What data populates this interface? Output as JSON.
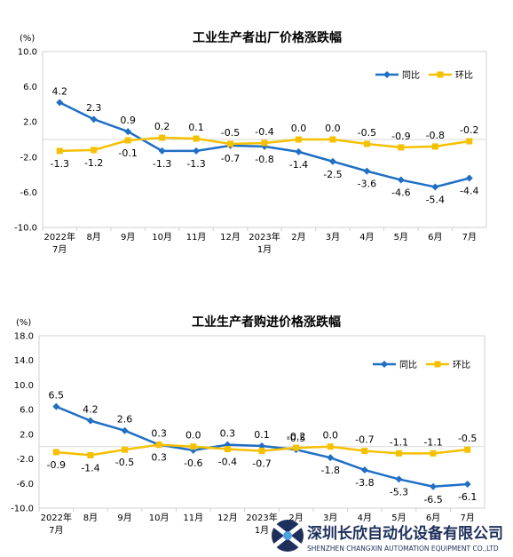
{
  "chart_data": [
    {
      "type": "line",
      "title": "工业生产者出厂价格涨跌幅",
      "unit": "(%)",
      "ylim": [
        -10.0,
        10.0
      ],
      "yticks": [
        "10.0",
        "6.0",
        "2.0",
        "-2.0",
        "-6.0",
        "-10.0"
      ],
      "ytick_values": [
        10,
        6,
        2,
        -2,
        -6,
        -10
      ],
      "categories": [
        [
          "2022年",
          "7月"
        ],
        [
          "8月"
        ],
        [
          "9月"
        ],
        [
          "10月"
        ],
        [
          "11月"
        ],
        [
          "12月"
        ],
        [
          "2023年",
          "1月"
        ],
        [
          "2月"
        ],
        [
          "3月"
        ],
        [
          "4月"
        ],
        [
          "5月"
        ],
        [
          "6月"
        ],
        [
          "7月"
        ]
      ],
      "legend_position": "top-right",
      "series": [
        {
          "name": "同比",
          "color": "#1f6fc5",
          "values": [
            4.2,
            2.3,
            0.9,
            -1.3,
            -1.3,
            -0.7,
            -0.8,
            -1.4,
            -2.5,
            -3.6,
            -4.6,
            -5.4,
            -4.4
          ],
          "labels": [
            "4.2",
            "2.3",
            "0.9",
            "-1.3",
            "-1.3",
            "-0.7",
            "-0.8",
            "-1.4",
            "-2.5",
            "-3.6",
            "-4.6",
            "-5.4",
            "-4.4"
          ]
        },
        {
          "name": "环比",
          "color": "#f5c000",
          "values": [
            -1.3,
            -1.2,
            -0.1,
            0.2,
            0.1,
            -0.5,
            -0.4,
            0.0,
            0.0,
            -0.5,
            -0.9,
            -0.8,
            -0.2
          ],
          "labels": [
            "-1.3",
            "-1.2",
            "-0.1",
            "0.2",
            "0.1",
            "-0.5",
            "-0.4",
            "0.0",
            "0.0",
            "-0.5",
            "-0.9",
            "-0.8",
            "-0.2"
          ]
        }
      ]
    },
    {
      "type": "line",
      "title": "工业生产者购进价格涨跌幅",
      "unit": "(%)",
      "ylim": [
        -10.0,
        18.0
      ],
      "yticks": [
        "18.0",
        "14.0",
        "10.0",
        "6.0",
        "2.0",
        "-2.0",
        "-6.0",
        "-10.0"
      ],
      "ytick_values": [
        18,
        14,
        10,
        6,
        2,
        -2,
        -6,
        -10
      ],
      "categories": [
        [
          "2022年",
          "7月"
        ],
        [
          "8月"
        ],
        [
          "9月"
        ],
        [
          "10月"
        ],
        [
          "11月"
        ],
        [
          "12月"
        ],
        [
          "2023年",
          "1月"
        ],
        [
          "2月"
        ],
        [
          "3月"
        ],
        [
          "4月"
        ],
        [
          "5月"
        ],
        [
          "6月"
        ],
        [
          "7月"
        ]
      ],
      "legend_position": "top-right",
      "series": [
        {
          "name": "同比",
          "color": "#1f6fc5",
          "values": [
            6.5,
            4.2,
            2.6,
            0.3,
            -0.6,
            0.3,
            0.1,
            -0.5,
            -1.8,
            -3.8,
            -5.3,
            -6.5,
            -6.1
          ],
          "labels": [
            "6.5",
            "4.2",
            "2.6",
            "0.3",
            "-0.6",
            "0.3",
            "0.1",
            "-0.5",
            "-1.8",
            "-3.8",
            "-5.3",
            "-6.5",
            "-6.1"
          ]
        },
        {
          "name": "环比",
          "color": "#f5c000",
          "values": [
            -0.9,
            -1.4,
            -0.5,
            0.3,
            0.0,
            -0.4,
            -0.7,
            -0.2,
            0.0,
            -0.7,
            -1.1,
            -1.1,
            -0.5
          ],
          "labels": [
            "-0.9",
            "-1.4",
            "-0.5",
            "0.3",
            "0.0",
            "-0.4",
            "-0.7",
            "-0.2",
            "0.0",
            "-0.7",
            "-1.1",
            "-1.1",
            "-0.5"
          ]
        }
      ]
    }
  ],
  "watermark": {
    "company_cn": "深圳长欣自动化设备有限公司",
    "company_en": "SHENZHEN CHANGXIN AUTOMATION EQUIPMENT CO.,LTD",
    "logo_icon": "changxin-logo-icon"
  }
}
